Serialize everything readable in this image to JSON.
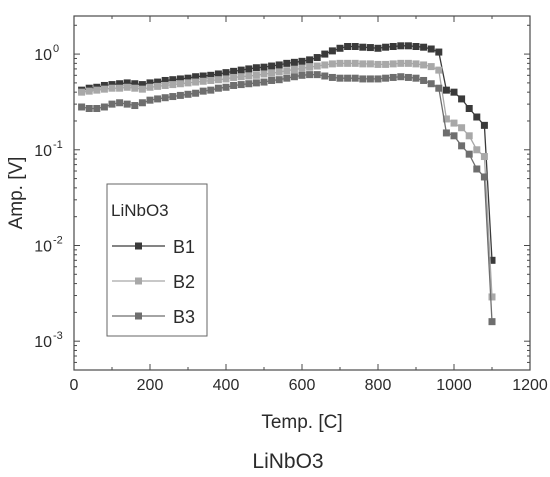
{
  "caption": "LiNbO3",
  "chart_data": {
    "type": "line",
    "title": "",
    "xlabel": "Temp. [C]",
    "ylabel": "Amp. [V]",
    "xlim": [
      0,
      1200
    ],
    "xticks": [
      0,
      200,
      400,
      600,
      800,
      1000,
      1200
    ],
    "xtick_labels": [
      "0",
      "200",
      "400",
      "600",
      "800",
      "1000",
      "1200"
    ],
    "yscale": "log",
    "ylim": [
      0.0005,
      2.5
    ],
    "yticks": [
      0.001,
      0.01,
      0.1,
      1
    ],
    "ytick_labels": [
      {
        "base": "10",
        "exp": "-3"
      },
      {
        "base": "10",
        "exp": "-2"
      },
      {
        "base": "10",
        "exp": "-1"
      },
      {
        "base": "10",
        "exp": "0"
      }
    ],
    "grid": false,
    "legend": {
      "title": "LiNbO3",
      "placement": "center-left"
    },
    "series": [
      {
        "name": "B1",
        "color": "#3a3a3a",
        "x": [
          20,
          40,
          60,
          80,
          100,
          120,
          140,
          160,
          180,
          200,
          220,
          240,
          260,
          280,
          300,
          320,
          340,
          360,
          380,
          400,
          420,
          440,
          460,
          480,
          500,
          520,
          540,
          560,
          580,
          600,
          620,
          640,
          660,
          680,
          700,
          720,
          740,
          760,
          780,
          800,
          820,
          840,
          860,
          880,
          900,
          920,
          940,
          960,
          980,
          1000,
          1020,
          1040,
          1060,
          1080,
          1100
        ],
        "y": [
          0.42,
          0.44,
          0.45,
          0.47,
          0.48,
          0.49,
          0.5,
          0.49,
          0.48,
          0.5,
          0.51,
          0.53,
          0.54,
          0.55,
          0.56,
          0.58,
          0.59,
          0.6,
          0.62,
          0.64,
          0.66,
          0.68,
          0.7,
          0.72,
          0.73,
          0.75,
          0.77,
          0.8,
          0.82,
          0.84,
          0.87,
          0.92,
          1.0,
          1.08,
          1.15,
          1.2,
          1.2,
          1.18,
          1.17,
          1.15,
          1.18,
          1.2,
          1.22,
          1.22,
          1.2,
          1.18,
          1.13,
          1.05,
          0.42,
          0.4,
          0.34,
          0.27,
          0.22,
          0.18,
          0.007
        ]
      },
      {
        "name": "B2",
        "color": "#a8a8a8",
        "x": [
          20,
          40,
          60,
          80,
          100,
          120,
          140,
          160,
          180,
          200,
          220,
          240,
          260,
          280,
          300,
          320,
          340,
          360,
          380,
          400,
          420,
          440,
          460,
          480,
          500,
          520,
          540,
          560,
          580,
          600,
          620,
          640,
          660,
          680,
          700,
          720,
          740,
          760,
          780,
          800,
          820,
          840,
          860,
          880,
          900,
          920,
          940,
          960,
          980,
          1000,
          1020,
          1040,
          1060,
          1080,
          1100
        ],
        "y": [
          0.4,
          0.41,
          0.42,
          0.43,
          0.44,
          0.44,
          0.45,
          0.44,
          0.43,
          0.45,
          0.46,
          0.47,
          0.48,
          0.49,
          0.5,
          0.51,
          0.52,
          0.53,
          0.54,
          0.55,
          0.57,
          0.58,
          0.59,
          0.6,
          0.62,
          0.63,
          0.65,
          0.67,
          0.69,
          0.71,
          0.73,
          0.75,
          0.77,
          0.79,
          0.8,
          0.8,
          0.8,
          0.79,
          0.79,
          0.78,
          0.78,
          0.79,
          0.8,
          0.8,
          0.79,
          0.77,
          0.74,
          0.68,
          0.21,
          0.19,
          0.17,
          0.14,
          0.1,
          0.085,
          0.0029
        ]
      },
      {
        "name": "B3",
        "color": "#6e6e6e",
        "x": [
          20,
          40,
          60,
          80,
          100,
          120,
          140,
          160,
          180,
          200,
          220,
          240,
          260,
          280,
          300,
          320,
          340,
          360,
          380,
          400,
          420,
          440,
          460,
          480,
          500,
          520,
          540,
          560,
          580,
          600,
          620,
          640,
          660,
          680,
          700,
          720,
          740,
          760,
          780,
          800,
          820,
          840,
          860,
          880,
          900,
          920,
          940,
          960,
          980,
          1000,
          1020,
          1040,
          1060,
          1080,
          1100
        ],
        "y": [
          0.28,
          0.27,
          0.27,
          0.28,
          0.3,
          0.31,
          0.3,
          0.29,
          0.31,
          0.33,
          0.34,
          0.35,
          0.36,
          0.37,
          0.38,
          0.39,
          0.41,
          0.42,
          0.44,
          0.45,
          0.47,
          0.48,
          0.49,
          0.5,
          0.51,
          0.53,
          0.54,
          0.56,
          0.58,
          0.6,
          0.61,
          0.61,
          0.59,
          0.57,
          0.56,
          0.56,
          0.56,
          0.55,
          0.55,
          0.55,
          0.56,
          0.57,
          0.58,
          0.57,
          0.56,
          0.53,
          0.49,
          0.44,
          0.15,
          0.14,
          0.11,
          0.09,
          0.063,
          0.052,
          0.0016
        ]
      }
    ]
  }
}
